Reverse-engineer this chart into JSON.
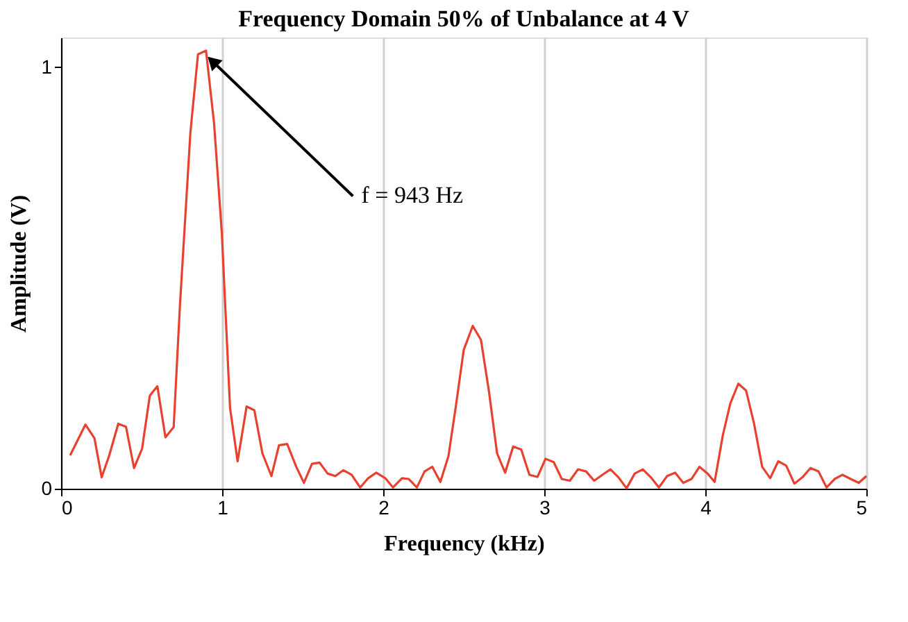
{
  "chart_data": {
    "type": "line",
    "title": "Frequency Domain 50% of Unbalance at 4 V",
    "xlabel": "Frequency (kHz)",
    "ylabel": "Amplitude (V)",
    "xlim": [
      0,
      5
    ],
    "ylim": [
      0,
      1.07
    ],
    "xticks": [
      0,
      1,
      2,
      3,
      4,
      5
    ],
    "yticks": [
      0,
      1
    ],
    "grid": "x",
    "marker": "none",
    "line_style": "solid",
    "annotations": [
      {
        "text": "f = 943 Hz",
        "x": 0.95,
        "y": 1.01
      }
    ],
    "series": [
      {
        "color": "#e8412f",
        "x": [
          0.056,
          0.151,
          0.207,
          0.252,
          0.299,
          0.355,
          0.403,
          0.453,
          0.503,
          0.551,
          0.598,
          0.648,
          0.699,
          0.738,
          0.803,
          0.85,
          0.9,
          0.95,
          0.998,
          1.049,
          1.096,
          1.152,
          1.2,
          1.25,
          1.306,
          1.353,
          1.404,
          1.46,
          1.508,
          1.558,
          1.605,
          1.655,
          1.703,
          1.753,
          1.804,
          1.857,
          1.907,
          1.957,
          2.013,
          2.061,
          2.117,
          2.159,
          2.209,
          2.257,
          2.305,
          2.355,
          2.405,
          2.452,
          2.5,
          2.556,
          2.607,
          2.657,
          2.707,
          2.757,
          2.807,
          2.857,
          2.908,
          2.958,
          3.008,
          3.059,
          3.109,
          3.159,
          3.21,
          3.26,
          3.31,
          3.361,
          3.411,
          3.461,
          3.511,
          3.562,
          3.612,
          3.662,
          3.712,
          3.763,
          3.813,
          3.863,
          3.914,
          3.964,
          4.014,
          4.058,
          4.109,
          4.155,
          4.205,
          4.253,
          4.303,
          4.353,
          4.403,
          4.453,
          4.502,
          4.553,
          4.603,
          4.653,
          4.703,
          4.753,
          4.803,
          4.852,
          4.903,
          4.953,
          5.0
        ],
        "values": [
          0.079,
          0.152,
          0.12,
          0.027,
          0.079,
          0.154,
          0.147,
          0.049,
          0.095,
          0.221,
          0.243,
          0.122,
          0.146,
          0.435,
          0.845,
          1.03,
          1.039,
          0.866,
          0.607,
          0.192,
          0.065,
          0.195,
          0.186,
          0.084,
          0.03,
          0.103,
          0.106,
          0.052,
          0.014,
          0.059,
          0.062,
          0.036,
          0.03,
          0.044,
          0.033,
          0.003,
          0.025,
          0.038,
          0.025,
          0.003,
          0.025,
          0.023,
          0.003,
          0.041,
          0.052,
          0.016,
          0.077,
          0.198,
          0.329,
          0.386,
          0.353,
          0.23,
          0.084,
          0.038,
          0.1,
          0.093,
          0.033,
          0.028,
          0.071,
          0.063,
          0.023,
          0.019,
          0.046,
          0.041,
          0.019,
          0.033,
          0.046,
          0.027,
          0.001,
          0.036,
          0.046,
          0.027,
          0.003,
          0.03,
          0.038,
          0.014,
          0.023,
          0.052,
          0.036,
          0.016,
          0.127,
          0.202,
          0.249,
          0.233,
          0.154,
          0.052,
          0.025,
          0.065,
          0.055,
          0.012,
          0.027,
          0.049,
          0.041,
          0.003,
          0.023,
          0.033,
          0.023,
          0.014,
          0.03
        ]
      }
    ]
  }
}
